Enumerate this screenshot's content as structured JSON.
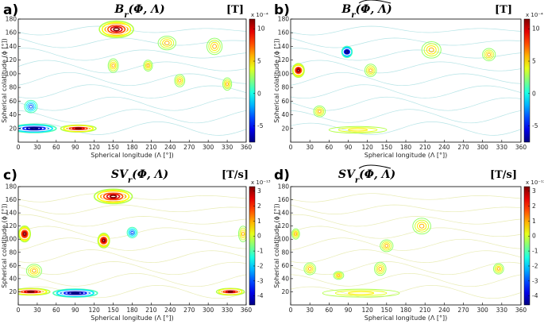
{
  "chart_data": [
    {
      "type": "contour",
      "panel": "a)",
      "title": "B_r(Φ, Λ)",
      "unit": "[T]",
      "colorbar": {
        "multiplier": "x 10⁻⁴",
        "ticks": [
          10,
          5,
          0,
          -5
        ],
        "range": [
          -7.5,
          11.5
        ]
      },
      "xlabel": "Spherical longitude (Λ [°])",
      "ylabel": "Spherical colatitude (ϕ [°])",
      "xticks": [
        0,
        30,
        60,
        90,
        120,
        150,
        180,
        210,
        240,
        270,
        300,
        330,
        360
      ],
      "yticks": [
        20,
        40,
        60,
        80,
        100,
        120,
        140,
        160,
        180
      ],
      "xlim": [
        0,
        360
      ],
      "ylim": [
        0,
        180
      ],
      "features": [
        {
          "lon": 155,
          "colat": 165,
          "sign": "max",
          "rx": 27,
          "ry": 12
        },
        {
          "lon": 95,
          "colat": 20,
          "sign": "max",
          "rx": 28,
          "ry": 5
        },
        {
          "lon": 25,
          "colat": 20,
          "sign": "min",
          "rx": 35,
          "ry": 6
        },
        {
          "lon": 150,
          "colat": 112,
          "sign": "pos",
          "rx": 8,
          "ry": 10
        },
        {
          "lon": 20,
          "colat": 52,
          "sign": "neg",
          "rx": 10,
          "ry": 9
        },
        {
          "lon": 255,
          "colat": 90,
          "sign": "pos",
          "rx": 8,
          "ry": 9
        },
        {
          "lon": 330,
          "colat": 85,
          "sign": "pos",
          "rx": 7,
          "ry": 9
        },
        {
          "lon": 310,
          "colat": 140,
          "sign": "pos",
          "rx": 12,
          "ry": 12
        },
        {
          "lon": 235,
          "colat": 145,
          "sign": "pos",
          "rx": 14,
          "ry": 10
        },
        {
          "lon": 205,
          "colat": 112,
          "sign": "pos",
          "rx": 7,
          "ry": 8
        }
      ]
    },
    {
      "type": "contour",
      "panel": "b)",
      "title": "B_r(Φ, Λ)~",
      "unit": "[T]",
      "colorbar": {
        "multiplier": "x 10⁻⁴",
        "ticks": [
          10,
          5,
          0,
          -5
        ],
        "range": [
          -7.5,
          11.5
        ]
      },
      "xlabel": "Spherical longitude (Λ [°])",
      "ylabel": "Spherical colatitude (ϕ [°])",
      "xticks": [
        0,
        30,
        60,
        90,
        120,
        150,
        180,
        210,
        240,
        270,
        300,
        330,
        360
      ],
      "yticks": [
        20,
        40,
        60,
        80,
        100,
        120,
        140,
        160,
        180
      ],
      "xlim": [
        0,
        360
      ],
      "ylim": [
        0,
        180
      ],
      "features": [
        {
          "lon": 12,
          "colat": 105,
          "sign": "max",
          "rx": 9,
          "ry": 10
        },
        {
          "lon": 88,
          "colat": 132,
          "sign": "min",
          "rx": 8,
          "ry": 8
        },
        {
          "lon": 220,
          "colat": 135,
          "sign": "pos",
          "rx": 15,
          "ry": 12
        },
        {
          "lon": 125,
          "colat": 105,
          "sign": "pos",
          "rx": 9,
          "ry": 9
        },
        {
          "lon": 310,
          "colat": 128,
          "sign": "pos",
          "rx": 10,
          "ry": 9
        },
        {
          "lon": 45,
          "colat": 45,
          "sign": "pos",
          "rx": 9,
          "ry": 8
        },
        {
          "lon": 105,
          "colat": 18,
          "sign": "weak",
          "rx": 45,
          "ry": 5
        }
      ]
    },
    {
      "type": "contour",
      "panel": "c)",
      "title": "SV_r(Φ, Λ)",
      "unit": "[T/s]",
      "colorbar": {
        "multiplier": "x 10⁻¹³",
        "ticks": [
          3,
          2,
          1,
          0,
          -1,
          -2,
          -3,
          -4
        ],
        "range": [
          -4.6,
          3.3
        ]
      },
      "xlabel": "Spherical longitude (Λ [°])",
      "ylabel": "Spherical colatitude (ϕ [°])",
      "xticks": [
        0,
        30,
        60,
        90,
        120,
        150,
        180,
        210,
        240,
        270,
        300,
        330,
        360
      ],
      "yticks": [
        20,
        40,
        60,
        80,
        100,
        120,
        140,
        160,
        180
      ],
      "xlim": [
        0,
        360
      ],
      "ylim": [
        0,
        180
      ],
      "features": [
        {
          "lon": 150,
          "colat": 165,
          "sign": "max",
          "rx": 30,
          "ry": 11
        },
        {
          "lon": 20,
          "colat": 20,
          "sign": "max",
          "rx": 30,
          "ry": 5
        },
        {
          "lon": 90,
          "colat": 18,
          "sign": "min",
          "rx": 35,
          "ry": 6
        },
        {
          "lon": 335,
          "colat": 20,
          "sign": "max",
          "rx": 22,
          "ry": 5
        },
        {
          "lon": 10,
          "colat": 108,
          "sign": "max",
          "rx": 9,
          "ry": 12
        },
        {
          "lon": 135,
          "colat": 98,
          "sign": "max",
          "rx": 9,
          "ry": 11
        },
        {
          "lon": 180,
          "colat": 110,
          "sign": "neg",
          "rx": 8,
          "ry": 8
        },
        {
          "lon": 355,
          "colat": 108,
          "sign": "pos",
          "rx": 7,
          "ry": 12
        },
        {
          "lon": 25,
          "colat": 52,
          "sign": "pos",
          "rx": 12,
          "ry": 10
        }
      ]
    },
    {
      "type": "contour",
      "panel": "d)",
      "title": "SV_r(Φ, Λ)~",
      "unit": "[T/s]",
      "colorbar": {
        "multiplier": "x 10⁻¹³",
        "ticks": [
          3,
          2,
          1,
          0,
          -1,
          -2,
          -3,
          -4
        ],
        "range": [
          -4.6,
          3.3
        ]
      },
      "xlabel": "Spherical longitude (Λ [°])",
      "ylabel": "Spherical colatitude (ϕ [°])",
      "xticks": [
        0,
        30,
        60,
        90,
        120,
        150,
        180,
        210,
        240,
        270,
        300,
        330,
        360
      ],
      "yticks": [
        20,
        40,
        60,
        80,
        100,
        120,
        140,
        160,
        180
      ],
      "xlim": [
        0,
        360
      ],
      "ylim": [
        0,
        180
      ],
      "features": [
        {
          "lon": 205,
          "colat": 120,
          "sign": "pos",
          "rx": 14,
          "ry": 12
        },
        {
          "lon": 150,
          "colat": 90,
          "sign": "pos",
          "rx": 10,
          "ry": 9
        },
        {
          "lon": 30,
          "colat": 55,
          "sign": "pos",
          "rx": 9,
          "ry": 9
        },
        {
          "lon": 75,
          "colat": 45,
          "sign": "pos",
          "rx": 8,
          "ry": 6
        },
        {
          "lon": 140,
          "colat": 55,
          "sign": "pos",
          "rx": 9,
          "ry": 10
        },
        {
          "lon": 325,
          "colat": 55,
          "sign": "pos",
          "rx": 8,
          "ry": 8
        },
        {
          "lon": 110,
          "colat": 18,
          "sign": "weak",
          "rx": 60,
          "ry": 6
        },
        {
          "lon": 8,
          "colat": 108,
          "sign": "pos",
          "rx": 6,
          "ry": 8
        }
      ]
    }
  ]
}
